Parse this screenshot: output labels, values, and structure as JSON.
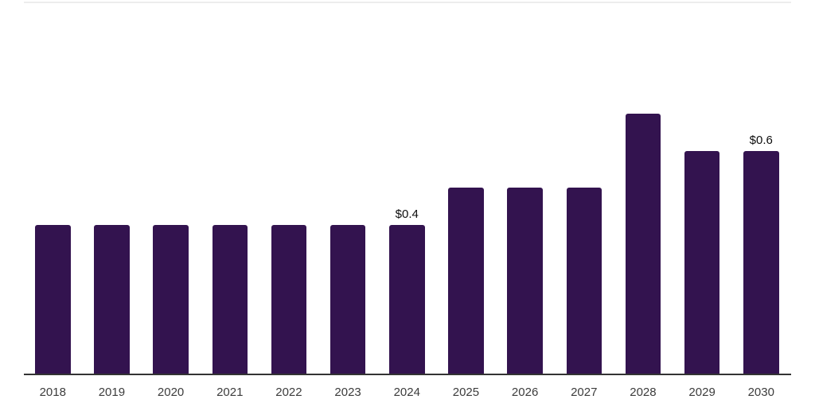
{
  "chart_data": {
    "type": "bar",
    "categories": [
      "2018",
      "2019",
      "2020",
      "2021",
      "2022",
      "2023",
      "2024",
      "2025",
      "2026",
      "2027",
      "2028",
      "2029",
      "2030"
    ],
    "values": [
      0.4,
      0.4,
      0.4,
      0.4,
      0.4,
      0.4,
      0.4,
      0.5,
      0.5,
      0.5,
      0.7,
      0.6,
      0.6
    ],
    "bar_labels": {
      "2024": "$0.4",
      "2030": "$0.6"
    },
    "title": "",
    "xlabel": "",
    "ylabel": "",
    "ylim": [
      0,
      0.77
    ],
    "grid": false,
    "legend": false,
    "colors": {
      "bar_fill": "#33134f",
      "axis_line": "#333333",
      "top_border": "#ededed",
      "tick_label": "#3c3c3c",
      "value_label": "#0d0d0d",
      "background": "#ffffff"
    }
  }
}
